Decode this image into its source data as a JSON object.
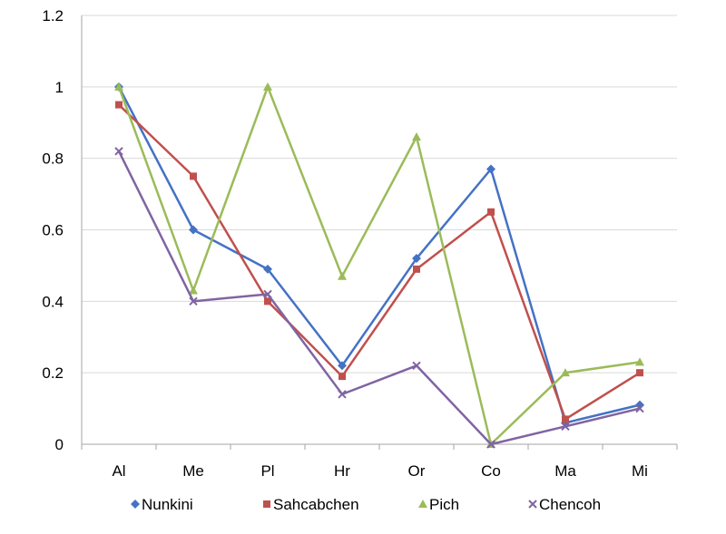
{
  "chart_data": {
    "type": "line",
    "title": "",
    "xlabel": "",
    "ylabel": "",
    "categories": [
      "Al",
      "Me",
      "Pl",
      "Hr",
      "Or",
      "Co",
      "Ma",
      "Mi"
    ],
    "ylim": [
      0,
      1.2
    ],
    "yticks": [
      "0",
      "0.2",
      "0.4",
      "0.6",
      "0.8",
      "1",
      "1.2"
    ],
    "grid": "horizontal",
    "legend_position": "bottom",
    "series": [
      {
        "name": "Nunkini",
        "color": "#4472C4",
        "marker": "diamond",
        "values": [
          1.0,
          0.6,
          0.49,
          0.22,
          0.52,
          0.77,
          0.06,
          0.11
        ]
      },
      {
        "name": "Sahcabchen",
        "color": "#C0504D",
        "marker": "square",
        "values": [
          0.95,
          0.75,
          0.4,
          0.19,
          0.49,
          0.65,
          0.07,
          0.2
        ]
      },
      {
        "name": "Pich",
        "color": "#9BBB59",
        "marker": "triangle",
        "values": [
          1.0,
          0.43,
          1.0,
          0.47,
          0.86,
          0.0,
          0.2,
          0.23
        ]
      },
      {
        "name": "Chencoh",
        "color": "#8064A2",
        "marker": "x",
        "values": [
          0.82,
          0.4,
          0.42,
          0.14,
          0.22,
          0.0,
          0.05,
          0.1
        ]
      }
    ]
  }
}
